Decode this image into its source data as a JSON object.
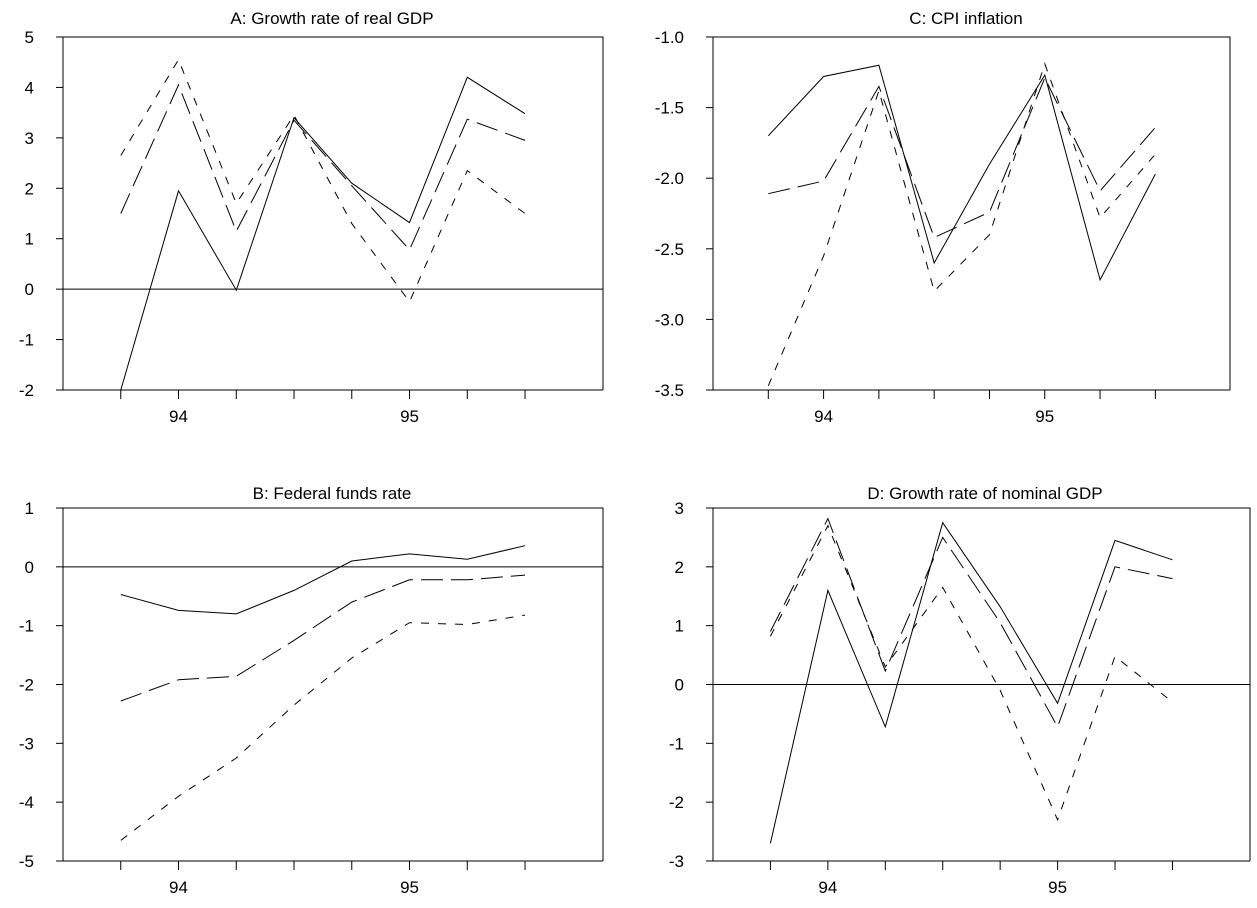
{
  "chart_data": [
    {
      "id": "A",
      "type": "line",
      "title": "A: Growth rate of real GDP",
      "ylim": [
        -2,
        5
      ],
      "yticks": [
        "5",
        "4",
        "3",
        "2",
        "1",
        "0",
        "-1",
        "-2"
      ],
      "ytick_values": [
        5,
        4,
        3,
        2,
        1,
        0,
        -1,
        -2
      ],
      "x": [
        1,
        2,
        3,
        4,
        5,
        6,
        7,
        8
      ],
      "xtick_labels": [
        {
          "x": 2,
          "label": "94"
        },
        {
          "x": 6,
          "label": "95"
        }
      ],
      "zero_line": true,
      "series": [
        {
          "style": "solid",
          "values": [
            -2.0,
            1.95,
            -0.02,
            3.4,
            2.1,
            1.32,
            4.2,
            3.48
          ]
        },
        {
          "style": "long-dash",
          "values": [
            1.5,
            4.05,
            1.15,
            3.35,
            2.05,
            0.78,
            3.37,
            2.95
          ]
        },
        {
          "style": "short-dash",
          "values": [
            2.65,
            4.55,
            1.7,
            3.45,
            1.3,
            -0.25,
            2.35,
            1.5
          ]
        }
      ]
    },
    {
      "id": "B",
      "type": "line",
      "title": "B: Federal funds rate",
      "ylim": [
        -5,
        1
      ],
      "yticks": [
        "1",
        "0",
        "-1",
        "-2",
        "-3",
        "-4",
        "-5"
      ],
      "ytick_values": [
        1,
        0,
        -1,
        -2,
        -3,
        -4,
        -5
      ],
      "x": [
        1,
        2,
        3,
        4,
        5,
        6,
        7,
        8
      ],
      "xtick_labels": [
        {
          "x": 2,
          "label": "94"
        },
        {
          "x": 6,
          "label": "95"
        }
      ],
      "zero_line": true,
      "series": [
        {
          "style": "solid",
          "values": [
            -0.47,
            -0.74,
            -0.8,
            -0.4,
            0.1,
            0.22,
            0.13,
            0.36
          ]
        },
        {
          "style": "long-dash",
          "values": [
            -2.28,
            -1.92,
            -1.86,
            -1.25,
            -0.6,
            -0.22,
            -0.22,
            -0.14
          ]
        },
        {
          "style": "short-dash",
          "values": [
            -4.65,
            -3.9,
            -3.25,
            -2.35,
            -1.55,
            -0.95,
            -0.98,
            -0.82
          ]
        }
      ]
    },
    {
      "id": "C",
      "type": "line",
      "title": "C: CPI inflation",
      "ylim": [
        -3.5,
        -1.0
      ],
      "yticks": [
        "-1.0",
        "-1.5",
        "-2.0",
        "-2.5",
        "-3.0",
        "-3.5"
      ],
      "ytick_values": [
        -1.0,
        -1.5,
        -2.0,
        -2.5,
        -3.0,
        -3.5
      ],
      "x": [
        1,
        2,
        3,
        4,
        5,
        6,
        7,
        8
      ],
      "xtick_labels": [
        {
          "x": 2,
          "label": "94"
        },
        {
          "x": 6,
          "label": "95"
        }
      ],
      "zero_line": false,
      "series": [
        {
          "style": "solid",
          "values": [
            -1.7,
            -1.28,
            -1.2,
            -2.6,
            -1.9,
            -1.27,
            -2.72,
            -1.97
          ]
        },
        {
          "style": "long-dash",
          "values": [
            -2.11,
            -2.02,
            -1.35,
            -2.42,
            -2.24,
            -1.29,
            -2.09,
            -1.64
          ]
        },
        {
          "style": "short-dash",
          "values": [
            -3.47,
            -2.55,
            -1.38,
            -2.8,
            -2.4,
            -1.19,
            -2.28,
            -1.83
          ]
        }
      ]
    },
    {
      "id": "D",
      "type": "line",
      "title": "D: Growth rate of nominal GDP",
      "ylim": [
        -3,
        3
      ],
      "yticks": [
        "3",
        "2",
        "1",
        "0",
        "-1",
        "-2",
        "-3"
      ],
      "ytick_values": [
        3,
        2,
        1,
        0,
        -1,
        -2,
        -3
      ],
      "x": [
        1,
        2,
        3,
        4,
        5,
        6,
        7,
        8
      ],
      "xtick_labels": [
        {
          "x": 2,
          "label": "94"
        },
        {
          "x": 6,
          "label": "95"
        }
      ],
      "zero_line": true,
      "series": [
        {
          "style": "solid",
          "values": [
            -2.7,
            1.6,
            -0.72,
            2.75,
            1.32,
            -0.32,
            2.45,
            2.12
          ]
        },
        {
          "style": "long-dash",
          "values": [
            0.9,
            2.82,
            0.23,
            2.5,
            1.05,
            -0.72,
            2.0,
            1.8
          ]
        },
        {
          "style": "short-dash",
          "values": [
            0.82,
            2.7,
            0.3,
            1.65,
            -0.1,
            -2.3,
            0.48,
            -0.3
          ]
        }
      ]
    }
  ]
}
